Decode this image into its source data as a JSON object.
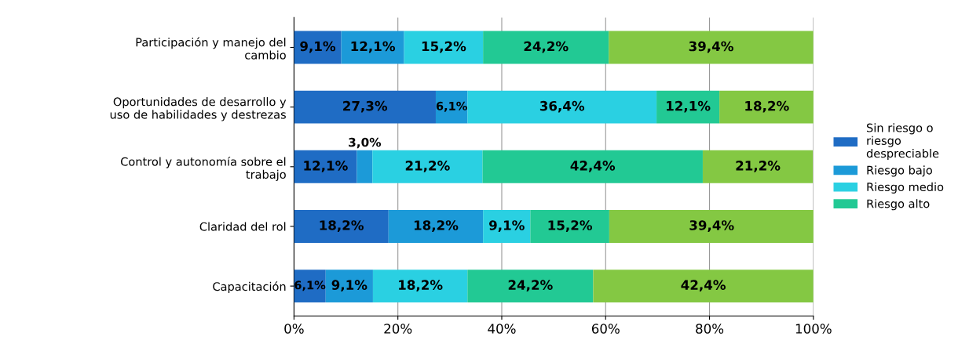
{
  "chart_data": {
    "type": "bar",
    "orientation": "horizontal",
    "stacked": true,
    "categories": [
      "Participación y manejo del\ncambio",
      "Oportunidades de desarrollo y\nuso de habilidades y destrezas",
      "Control y autonomía sobre el\ntrabajo",
      "Claridad del rol",
      "Capacitación"
    ],
    "series": [
      {
        "name": "Sin riesgo o\nriesgo\ndespreciable",
        "color": "#1f6cc4",
        "values": [
          9.1,
          27.3,
          12.1,
          18.2,
          6.1
        ],
        "value_labels": [
          "9,1%",
          "27,3%",
          "12,1%",
          "18,2%",
          "6,1%"
        ]
      },
      {
        "name": "Riesgo bajo",
        "color": "#1c9ad8",
        "values": [
          12.1,
          6.1,
          3.0,
          18.2,
          9.1
        ],
        "value_labels": [
          "12,1%",
          "6,1%",
          "3,0%",
          "18,2%",
          "9,1%"
        ]
      },
      {
        "name": "Riesgo medio",
        "color": "#2ad0e2",
        "values": [
          15.2,
          36.4,
          21.2,
          9.1,
          18.2
        ],
        "value_labels": [
          "15,2%",
          "36,4%",
          "21,2%",
          "9,1%",
          "18,2%"
        ]
      },
      {
        "name": "Riesgo alto",
        "color": "#22c994",
        "values": [
          24.2,
          12.1,
          42.4,
          15.2,
          24.2
        ],
        "value_labels": [
          "24,2%",
          "12,1%",
          "42,4%",
          "15,2%",
          "24,2%"
        ]
      },
      {
        "color": "#84c843",
        "values": [
          39.4,
          18.2,
          21.2,
          39.4,
          42.4
        ],
        "value_labels": [
          "39,4%",
          "18,2%",
          "21,2%",
          "39,4%",
          "42,4%"
        ]
      }
    ],
    "xlim": [
      0,
      100
    ],
    "xticks": [
      {
        "value": 0,
        "label": "0%"
      },
      {
        "value": 20,
        "label": "20%"
      },
      {
        "value": 40,
        "label": "40%"
      },
      {
        "value": 60,
        "label": "60%"
      },
      {
        "value": 80,
        "label": "80%"
      },
      {
        "value": 100,
        "label": "100%"
      }
    ],
    "grid": "x",
    "legend": "right"
  }
}
